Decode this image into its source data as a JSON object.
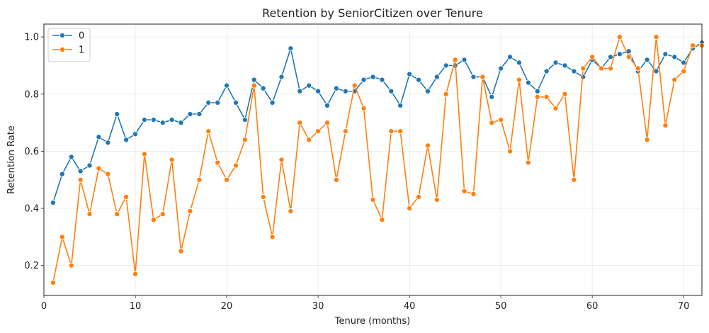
{
  "chart_data": {
    "type": "line",
    "title": "Retention by SeniorCitizen over Tenure",
    "xlabel": "Tenure (months)",
    "ylabel": "Retention Rate",
    "xlim": [
      0,
      72
    ],
    "ylim": [
      0.095,
      1.045
    ],
    "xticks": [
      0,
      10,
      20,
      30,
      40,
      50,
      60,
      70
    ],
    "yticks": [
      0.2,
      0.4,
      0.6,
      0.8,
      1.0
    ],
    "xtick_labels": [
      "0",
      "10",
      "20",
      "30",
      "40",
      "50",
      "60",
      "70"
    ],
    "ytick_labels": [
      "0.2",
      "0.4",
      "0.6",
      "0.8",
      "1.0"
    ],
    "grid": true,
    "legend": "top-left",
    "x": [
      1,
      2,
      3,
      4,
      5,
      6,
      7,
      8,
      9,
      10,
      11,
      12,
      13,
      14,
      15,
      16,
      17,
      18,
      19,
      20,
      21,
      22,
      23,
      24,
      25,
      26,
      27,
      28,
      29,
      30,
      31,
      32,
      33,
      34,
      35,
      36,
      37,
      38,
      39,
      40,
      41,
      42,
      43,
      44,
      45,
      46,
      47,
      48,
      49,
      50,
      51,
      52,
      53,
      54,
      55,
      56,
      57,
      58,
      59,
      60,
      61,
      62,
      63,
      64,
      65,
      66,
      67,
      68,
      69,
      70,
      71,
      72
    ],
    "series": [
      {
        "name": "0",
        "color": "#1f77b4",
        "values": [
          0.42,
          0.52,
          0.58,
          0.53,
          0.55,
          0.65,
          0.63,
          0.73,
          0.64,
          0.66,
          0.71,
          0.71,
          0.7,
          0.71,
          0.7,
          0.73,
          0.73,
          0.77,
          0.77,
          0.83,
          0.77,
          0.71,
          0.85,
          0.82,
          0.77,
          0.86,
          0.96,
          0.81,
          0.83,
          0.81,
          0.76,
          0.82,
          0.81,
          0.81,
          0.85,
          0.86,
          0.85,
          0.81,
          0.76,
          0.87,
          0.85,
          0.81,
          0.86,
          0.9,
          0.9,
          0.92,
          0.86,
          0.86,
          0.79,
          0.89,
          0.93,
          0.91,
          0.84,
          0.81,
          0.88,
          0.91,
          0.9,
          0.88,
          0.86,
          0.92,
          0.89,
          0.93,
          0.94,
          0.95,
          0.88,
          0.92,
          0.88,
          0.94,
          0.93,
          0.91,
          0.96,
          0.98
        ]
      },
      {
        "name": "1",
        "color": "#ff7f0e",
        "values": [
          0.14,
          0.3,
          0.2,
          0.5,
          0.38,
          0.54,
          0.52,
          0.38,
          0.44,
          0.17,
          0.59,
          0.36,
          0.38,
          0.57,
          0.25,
          0.39,
          0.5,
          0.67,
          0.56,
          0.5,
          0.55,
          0.64,
          0.83,
          0.44,
          0.3,
          0.57,
          0.39,
          0.7,
          0.64,
          0.67,
          0.7,
          0.5,
          0.67,
          0.83,
          0.75,
          0.43,
          0.36,
          0.67,
          0.67,
          0.4,
          0.44,
          0.62,
          0.43,
          0.8,
          0.92,
          0.46,
          0.45,
          0.86,
          0.7,
          0.71,
          0.6,
          0.85,
          0.56,
          0.79,
          0.79,
          0.75,
          0.8,
          0.5,
          0.89,
          0.93,
          0.89,
          0.89,
          1.0,
          0.93,
          0.89,
          0.64,
          1.0,
          0.69,
          0.85,
          0.88,
          0.97,
          0.97
        ]
      }
    ]
  }
}
